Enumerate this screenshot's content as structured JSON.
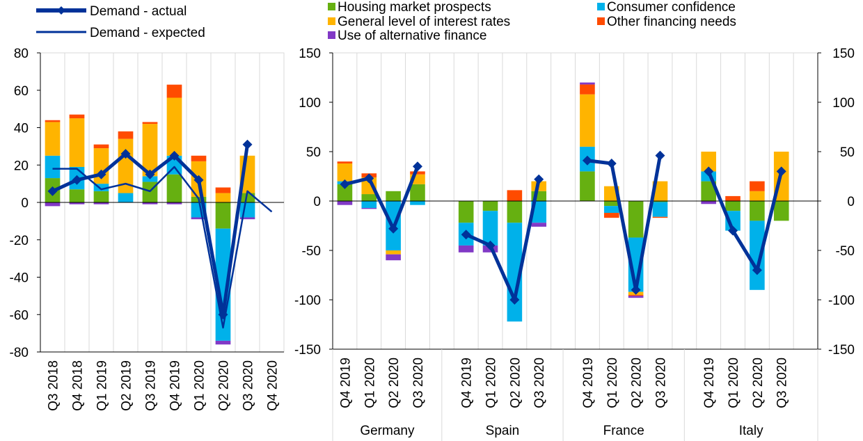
{
  "legend": {
    "lines": [
      {
        "key": "actual",
        "label": "Demand - actual"
      },
      {
        "key": "expected",
        "label": "Demand - expected"
      }
    ],
    "factors": [
      {
        "key": "housing",
        "label": "Housing market prospects",
        "color": "#66B011"
      },
      {
        "key": "confidence",
        "label": "Consumer confidence",
        "color": "#00B1EA"
      },
      {
        "key": "rates",
        "label": "General level of interest rates",
        "color": "#FFB400"
      },
      {
        "key": "other",
        "label": "Other financing needs",
        "color": "#FF4B00"
      },
      {
        "key": "altfin",
        "label": "Use of alternative finance",
        "color": "#8139C6"
      }
    ]
  },
  "colors": {
    "line": "#003299",
    "grid": "#D9D9D9",
    "axis": "#000000"
  },
  "chart_data": [
    {
      "type": "bar",
      "stacked": true,
      "categories": [
        "Q3 2018",
        "Q4 2018",
        "Q1 2019",
        "Q2 2019",
        "Q3 2019",
        "Q4 2019",
        "Q1 2020",
        "Q2 2020",
        "Q3 2020",
        "Q4 2020"
      ],
      "ylim": [
        -80,
        80
      ],
      "yticks": [
        80,
        60,
        40,
        20,
        0,
        -20,
        -40,
        -60,
        -80
      ],
      "grid": "vertical",
      "series": [
        {
          "key": "housing",
          "values": [
            13,
            7,
            6,
            0,
            11,
            15,
            3,
            -14,
            5,
            null
          ]
        },
        {
          "key": "confidence",
          "values": [
            12,
            12,
            4,
            5,
            3,
            10,
            -8,
            -60,
            -8,
            null
          ]
        },
        {
          "key": "rates",
          "values": [
            18,
            26,
            19,
            29,
            28,
            31,
            19,
            5,
            20,
            null
          ]
        },
        {
          "key": "other",
          "values": [
            1,
            2,
            2,
            4,
            1,
            7,
            3,
            3,
            0,
            null
          ]
        },
        {
          "key": "altfin",
          "values": [
            -2,
            -1,
            -1,
            0,
            -1,
            -1,
            -1,
            -2,
            -1,
            null
          ]
        }
      ],
      "lines": [
        {
          "key": "actual",
          "values": [
            6,
            12,
            15,
            26,
            15,
            25,
            12,
            -60,
            31,
            null
          ]
        },
        {
          "key": "expected",
          "values": [
            18,
            18,
            7,
            10,
            6,
            19,
            2,
            -67,
            6,
            -5
          ]
        }
      ]
    },
    {
      "type": "bar",
      "stacked": true,
      "groups": [
        {
          "name": "Germany",
          "categories": [
            "Q4 2019",
            "Q1 2020",
            "Q2 2020",
            "Q3 2020"
          ]
        },
        {
          "name": "Spain",
          "categories": [
            "Q4 2019",
            "Q1 2020",
            "Q2 2020",
            "Q3 2020"
          ]
        },
        {
          "name": "France",
          "categories": [
            "Q4 2019",
            "Q1 2020",
            "Q2 2020",
            "Q3 2020"
          ]
        },
        {
          "name": "Italy",
          "categories": [
            "Q4 2019",
            "Q1 2020",
            "Q2 2020",
            "Q3 2020"
          ]
        }
      ],
      "ylim": [
        -150,
        150
      ],
      "yticks": [
        150,
        100,
        50,
        0,
        -50,
        -100,
        -150
      ],
      "grid": "vertical",
      "series": [
        {
          "key": "housing",
          "values": [
            17,
            7,
            10,
            17,
            -22,
            -10,
            -22,
            10,
            30,
            -5,
            -37,
            -1,
            20,
            -10,
            -20,
            -20
          ]
        },
        {
          "key": "confidence",
          "values": [
            3,
            -7,
            -50,
            -4,
            -23,
            -35,
            -100,
            -22,
            25,
            -7,
            -55,
            -15,
            10,
            -20,
            -70,
            0
          ]
        },
        {
          "key": "rates",
          "values": [
            18,
            17,
            -4,
            10,
            0,
            0,
            0,
            10,
            53,
            15,
            -3,
            20,
            20,
            0,
            10,
            50
          ]
        },
        {
          "key": "other",
          "values": [
            2,
            4,
            0,
            3,
            0,
            0,
            11,
            0,
            10,
            -5,
            -1,
            -1,
            0,
            5,
            10,
            0
          ]
        },
        {
          "key": "altfin",
          "values": [
            -4,
            -1,
            -6,
            0,
            -7,
            -7,
            0,
            -4,
            2,
            0,
            -2,
            0,
            -3,
            0,
            0,
            0
          ]
        }
      ],
      "lines": [
        {
          "key": "actual",
          "values": [
            17,
            23,
            -28,
            35,
            -34,
            -45,
            -100,
            22,
            41,
            38,
            -90,
            46,
            30,
            -30,
            -70,
            30
          ]
        }
      ]
    }
  ]
}
